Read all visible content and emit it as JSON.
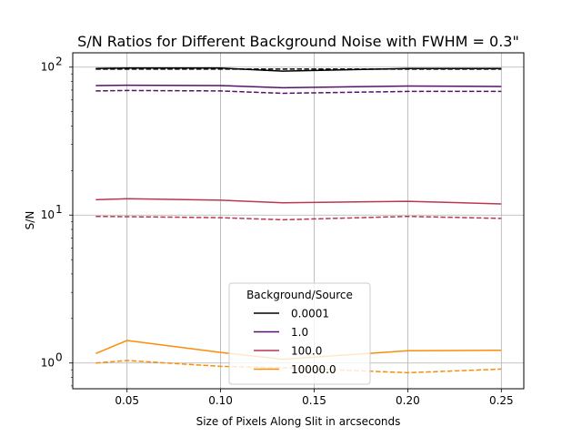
{
  "chart_data": {
    "type": "line",
    "title": "S/N Ratios for Different Background Noise with FWHM = 0.3\"",
    "xlabel": "Size of Pixels Along Slit in arcseconds",
    "ylabel": "S/N",
    "xscale": "linear",
    "yscale": "log",
    "xlim": [
      0.021,
      0.262
    ],
    "ylim": [
      0.67,
      125
    ],
    "x_ticks": [
      0.05,
      0.1,
      0.15,
      0.2,
      0.25
    ],
    "x_tick_labels": [
      "0.05",
      "0.10",
      "0.15",
      "0.20",
      "0.25"
    ],
    "y_ticks": [
      1,
      10,
      100
    ],
    "y_tick_labels": [
      "10",
      "10",
      "10"
    ],
    "y_tick_exponents": [
      "0",
      "1",
      "2"
    ],
    "grid": true,
    "legend": {
      "title": "Background/Source",
      "location": "lower-center"
    },
    "x": [
      0.0333,
      0.05,
      0.1,
      0.1333,
      0.2,
      0.25
    ],
    "series": [
      {
        "name": "0.0001",
        "color": "#000000",
        "style": "solid",
        "values": [
          98,
          98.5,
          98.5,
          94,
          98,
          98
        ]
      },
      {
        "name": "0.0001",
        "color": "#000000",
        "style": "dashed",
        "legend": false,
        "values": [
          97,
          97,
          97,
          97,
          97,
          97
        ]
      },
      {
        "name": "1.0",
        "color": "#57106e",
        "style": "solid",
        "values": [
          75,
          75.5,
          75,
          72.5,
          74.5,
          74
        ]
      },
      {
        "name": "1.0",
        "color": "#57106e",
        "style": "dashed",
        "legend": false,
        "values": [
          69,
          69.5,
          69,
          66.5,
          68.5,
          68.5
        ]
      },
      {
        "name": "100.0",
        "color": "#bc3754",
        "style": "solid",
        "values": [
          12.7,
          12.9,
          12.6,
          12.1,
          12.4,
          11.9
        ]
      },
      {
        "name": "100.0",
        "color": "#bc3754",
        "style": "dashed",
        "legend": false,
        "values": [
          9.8,
          9.75,
          9.6,
          9.3,
          9.8,
          9.5
        ]
      },
      {
        "name": "10000.0",
        "color": "#f98e09",
        "style": "solid",
        "values": [
          1.16,
          1.42,
          1.18,
          1.06,
          1.21,
          1.22
        ]
      },
      {
        "name": "10000.0",
        "color": "#f98e09",
        "style": "dashed",
        "legend": false,
        "values": [
          1.0,
          1.04,
          0.95,
          0.93,
          0.86,
          0.91
        ]
      }
    ]
  }
}
